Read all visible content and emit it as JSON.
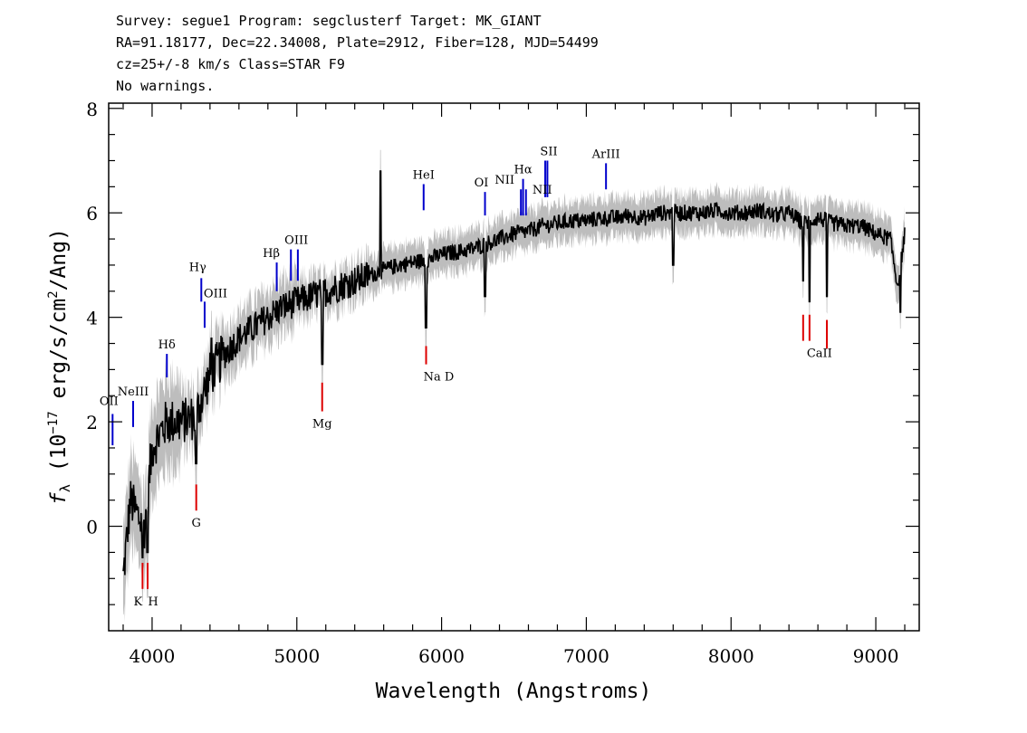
{
  "header": {
    "line1": "Survey: segue1 Program: segclusterf Target: MK_GIANT",
    "line2": "RA=91.18177, Dec=22.34008, Plate=2912, Fiber=128, MJD=54499",
    "line3": "cz=25+/-8 km/s Class=STAR F9",
    "line4": "No warnings."
  },
  "chart_data": {
    "type": "line",
    "xlabel": "Wavelength (Angstroms)",
    "ylabel": "f_λ (10^-17 erg/s/cm^2/Ang)",
    "ylabel_parts": {
      "f": "f",
      "sub": "λ",
      "open": " (10",
      "exp": "−17",
      "mid": " erg/s/cm",
      "exp2": "2",
      "close": "/Ang)"
    },
    "xlim": [
      3700,
      9300
    ],
    "ylim": [
      -2,
      8.1
    ],
    "xticks": [
      4000,
      5000,
      6000,
      7000,
      8000,
      9000
    ],
    "yticks": [
      0,
      2,
      4,
      6,
      8
    ],
    "xtick_labels": [
      "4000",
      "5000",
      "6000",
      "7000",
      "8000",
      "9000"
    ],
    "ytick_labels": [
      "0",
      "2",
      "4",
      "6",
      "8"
    ],
    "grid": false,
    "colors": {
      "flux": "#000000",
      "error_band": "#bdbdbd",
      "emission": "#0000cc",
      "absorption": "#dd0000"
    },
    "spectrum_anchors": {
      "x": [
        3800,
        3850,
        3900,
        3950,
        4000,
        4100,
        4200,
        4300,
        4400,
        4500,
        4600,
        4700,
        4800,
        4900,
        5000,
        5100,
        5200,
        5300,
        5400,
        5500,
        5600,
        5700,
        5800,
        5900,
        6000,
        6100,
        6200,
        6300,
        6400,
        6500,
        6600,
        6700,
        6800,
        6900,
        7000,
        7100,
        7200,
        7300,
        7400,
        7500,
        7600,
        7700,
        7800,
        7900,
        8000,
        8100,
        8200,
        8300,
        8400,
        8500,
        8600,
        8700,
        8800,
        8900,
        9000,
        9100,
        9150,
        9200
      ],
      "y": [
        -1.0,
        0.5,
        0.2,
        0.0,
        1.5,
        2.0,
        2.0,
        2.1,
        2.9,
        3.3,
        3.6,
        3.8,
        4.0,
        4.2,
        4.3,
        4.4,
        4.5,
        4.6,
        4.7,
        4.8,
        4.9,
        5.0,
        5.05,
        5.1,
        5.2,
        5.25,
        5.3,
        5.4,
        5.5,
        5.6,
        5.65,
        5.75,
        5.8,
        5.85,
        5.85,
        5.9,
        5.9,
        5.95,
        5.9,
        6.0,
        6.0,
        6.0,
        6.0,
        6.05,
        6.0,
        6.0,
        6.05,
        5.95,
        6.0,
        5.8,
        5.9,
        5.8,
        5.75,
        5.75,
        5.6,
        5.5,
        4.6,
        5.6
      ]
    },
    "absorption_dips": [
      {
        "x": 3934,
        "y": -0.6
      },
      {
        "x": 3969,
        "y": -0.5
      },
      {
        "x": 4305,
        "y": 1.2
      },
      {
        "x": 5175,
        "y": 3.1
      },
      {
        "x": 5893,
        "y": 3.8
      },
      {
        "x": 6300,
        "y": 4.4
      },
      {
        "x": 7600,
        "y": 5.0
      },
      {
        "x": 8498,
        "y": 4.7
      },
      {
        "x": 8542,
        "y": 4.3
      },
      {
        "x": 8662,
        "y": 4.4
      },
      {
        "x": 9170,
        "y": 4.1
      }
    ],
    "emission_spikes": [
      {
        "x": 5577,
        "y": 6.8
      },
      {
        "x": 4410,
        "y": 3.6
      }
    ],
    "lines": [
      {
        "label": "OII",
        "x": 3727,
        "y0": 1.55,
        "y1": 2.15,
        "type": "emission"
      },
      {
        "label": "NeIII",
        "x": 3869,
        "y0": 1.9,
        "y1": 2.4,
        "type": "emission"
      },
      {
        "label": "Hδ",
        "x": 4102,
        "y0": 2.85,
        "y1": 3.3,
        "type": "emission"
      },
      {
        "label": "Hγ",
        "x": 4340,
        "y0": 4.3,
        "y1": 4.75,
        "type": "emission"
      },
      {
        "label": "OIII",
        "x": 4363,
        "y0": 3.8,
        "y1": 4.3,
        "type": "emission"
      },
      {
        "label": "Hβ",
        "x": 4861,
        "y0": 4.5,
        "y1": 5.05,
        "type": "emission"
      },
      {
        "label": "OIII",
        "x": 4959,
        "y0": 4.7,
        "y1": 5.3,
        "type": "emission"
      },
      {
        "label": "",
        "x": 5007,
        "y0": 4.7,
        "y1": 5.3,
        "type": "emission"
      },
      {
        "label": "HeI",
        "x": 5876,
        "y0": 6.05,
        "y1": 6.55,
        "type": "emission"
      },
      {
        "label": "OI",
        "x": 6300,
        "y0": 5.95,
        "y1": 6.4,
        "type": "emission"
      },
      {
        "label": "NII",
        "x": 6548,
        "y0": 5.95,
        "y1": 6.45,
        "type": "emission"
      },
      {
        "label": "Hα",
        "x": 6563,
        "y0": 5.95,
        "y1": 6.65,
        "type": "emission"
      },
      {
        "label": "NII",
        "x": 6583,
        "y0": 5.95,
        "y1": 6.45,
        "type": "emission"
      },
      {
        "label": "SII",
        "x": 6716,
        "y0": 6.3,
        "y1": 7.0,
        "type": "emission"
      },
      {
        "label": "",
        "x": 6731,
        "y0": 6.3,
        "y1": 7.0,
        "type": "emission"
      },
      {
        "label": "ArIII",
        "x": 7136,
        "y0": 6.45,
        "y1": 6.95,
        "type": "emission"
      },
      {
        "label": "K",
        "x": 3934,
        "y0": -1.2,
        "y1": -0.7,
        "type": "absorption"
      },
      {
        "label": "H",
        "x": 3969,
        "y0": -1.2,
        "y1": -0.7,
        "type": "absorption"
      },
      {
        "label": "G",
        "x": 4305,
        "y0": 0.3,
        "y1": 0.8,
        "type": "absorption"
      },
      {
        "label": "Mg",
        "x": 5175,
        "y0": 2.2,
        "y1": 2.75,
        "type": "absorption"
      },
      {
        "label": "Na D",
        "x": 5893,
        "y0": 3.1,
        "y1": 3.45,
        "type": "absorption"
      },
      {
        "label": "CaII",
        "x": 8498,
        "y0": 3.55,
        "y1": 4.05,
        "type": "absorption"
      },
      {
        "label": "",
        "x": 8542,
        "y0": 3.55,
        "y1": 4.05,
        "type": "absorption"
      },
      {
        "label": "",
        "x": 8662,
        "y0": 3.4,
        "y1": 3.95,
        "type": "absorption"
      }
    ]
  }
}
